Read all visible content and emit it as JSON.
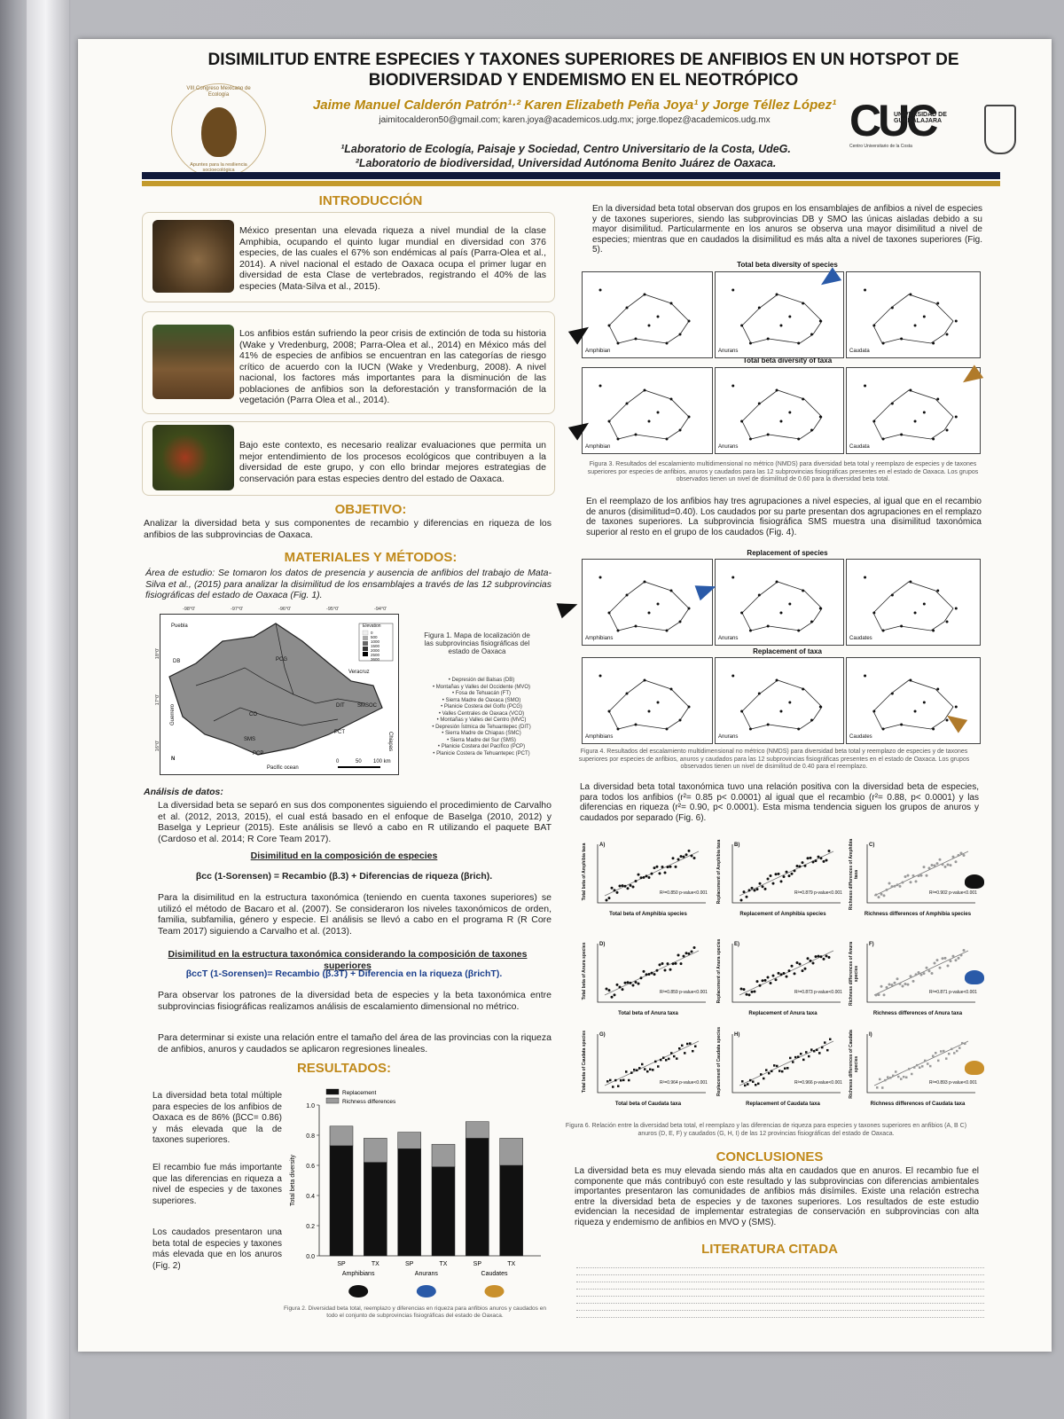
{
  "poster": {
    "title": "DISIMILITUD ENTRE ESPECIES Y TAXONES SUPERIORES DE ANFIBIOS EN UN HOTSPOT DE BIODIVERSIDAD Y ENDEMISMO EN EL NEOTRÓPICO",
    "authors": "Jaime Manuel Calderón Patrón¹·² Karen Elizabeth Peña Joya¹ y Jorge Téllez López¹",
    "emails": "jaimitocalderon50@gmail.com; karen.joya@academicos.udg.mx; jorge.tlopez@academicos.udg.mx",
    "affiliation1": "¹Laboratorio de Ecología, Paisaje y Sociedad, Centro Universitario de la Costa, UdeG.",
    "affiliation2": "²Laboratorio de biodiversidad, Universidad Autónoma Benito Juárez de Oaxaca.",
    "logo_left_text": "VIII Congreso Mexicano de Ecología · Apuntes para la resiliencia socioecológica",
    "logo_right_main": "CUC",
    "logo_right_name": "UNIVERSIDAD DE GUADALAJARA",
    "logo_right_sub": "Centro Universitario de la Costa",
    "accent_color": "#c0891a",
    "band_color": "#111a3a"
  },
  "intro": {
    "heading": "INTRODUCCIÓN",
    "p1": "México presentan una elevada riqueza a nivel mundial de la clase Amphibia, ocupando el quinto lugar mundial en diversidad con 376 especies, de las cuales el 67% son endémicas al país (Parra-Olea et al., 2014). A nivel nacional el estado de Oaxaca ocupa el primer lugar en diversidad de esta Clase de vertebrados, registrando el 40% de las especies (Mata-Silva et al., 2015).",
    "p2": "Los anfibios están sufriendo la peor crisis de extinción de toda su historia (Wake y Vredenburg, 2008; Parra-Olea et al., 2014) en México más del 41% de especies de anfibios se encuentran en las categorías de riesgo crítico de acuerdo con la IUCN (Wake y Vredenburg, 2008). A nivel nacional, los factores más importantes para la disminución de las poblaciones de anfibios son la deforestación y transformación de la vegetación (Parra Olea et al., 2014).",
    "p3": "Bajo este contexto, es necesario realizar evaluaciones que permita un mejor entendimiento de los procesos ecológicos que contribuyen a la diversidad de este grupo, y con ello brindar mejores estrategias de conservación para estas especies dentro del estado de Oaxaca."
  },
  "objetivo": {
    "heading": "OBJETIVO:",
    "text": "Analizar la diversidad beta y sus componentes de recambio y diferencias en riqueza de los anfibios de las subprovincias de Oaxaca."
  },
  "metodos": {
    "heading": "MATERIALES Y MÉTODOS:",
    "area": "Área de estudio: Se tomaron los datos de presencia y ausencia de anfibios del trabajo de Mata-Silva et al., (2015) para analizar la disimilitud de los ensamblajes a través de las 12 subprovincias fisiográficas del estado de Oaxaca (Fig. 1).",
    "fig1_caption": "Figura 1. Mapa de localización de las subprovincias fisiográficas del estado de Oaxaca",
    "fig1_list": [
      "Depresión del Balsas (DB)",
      "Montañas y Valles del Occidente (MVO)",
      "Fosa de Tehuacán (FT)",
      "Sierra Madre de Oaxaca (SMO)",
      "Planicie Costera del Golfo (PCG)",
      "Valles Centrales de Oaxaca (VCO)",
      "Montañas y Valles del Centro (MVC)",
      "Depresión Ístmica de Tehuantepec (DIT)",
      "Sierra Madre de Chiapas (SMC)",
      "Sierra Madre del Sur (SMS)",
      "Planicie Costera del Pacífico (PCP)",
      "Planicie Costera de Tehuantepec (PCT)"
    ],
    "map_labels": {
      "lon": [
        "-98°0'",
        "-97°0'",
        "-96°0'",
        "-95°0'",
        "-94°0'"
      ],
      "lat": [
        "18°0'",
        "17°0'",
        "16°0'"
      ],
      "puebla": "Puebla",
      "veracruz": "Veracruz",
      "guerrero": "Guerrero",
      "chiapas": "Chiapas",
      "ocean": "Pacific ocean",
      "elevation": "Elevation",
      "elev_values": [
        "0",
        "500",
        "1000",
        "1500",
        "2000",
        "2500",
        "3600"
      ],
      "scale": [
        "0",
        "50",
        "100 km"
      ],
      "north": "N",
      "regions": [
        "DB",
        "PCG",
        "DIT",
        "SMSOC",
        "PCT",
        "PCP",
        "SMS",
        "CO"
      ]
    },
    "analisis_heading": "Análisis de datos:",
    "analisis_1": "La diversidad beta se separó en sus dos componentes siguiendo el procedimiento de Carvalho et al. (2012, 2013, 2015), el cual está basado en el enfoque de Baselga (2010, 2012) y Baselga y Leprieur (2015). Este análisis se llevó a cabo en R utilizando el paquete BAT (Cardoso et al. 2014; R Core Team 2017).",
    "sub1": "Disimilitud en la composición de especies",
    "eq1": "βcc (1-Sorensen) = Recambio (β.3) + Diferencias de riqueza (βrich).",
    "analisis_2": "Para la disimilitud en la estructura taxonómica (teniendo en cuenta taxones superiores) se utilizó el método de Bacaro et al. (2007). Se consideraron los niveles taxonómicos de orden, familia, subfamilia, género y especie. El análisis se llevó a cabo en el programa R (R Core Team 2017) siguiendo a Carvalho et al. (2013).",
    "sub2": "Disimilitud en la estructura taxonómica considerando la composición de taxones superiores",
    "eq2": "βccT (1-Sorensen)= Recambio (β.3T) + Diferencia en la riqueza (βrichT).",
    "analisis_3": "Para observar los patrones de la diversidad beta de especies y la beta taxonómica entre subprovincias fisiográficas realizamos análisis de escalamiento dimensional no métrico.",
    "analisis_4": "Para determinar si existe una relación entre el tamaño del área de las provincias con la riqueza de anfibios, anuros y caudados se aplicaron regresiones lineales."
  },
  "resultados": {
    "heading": "RESULTADOS:",
    "b1": "La diversidad beta total múltiple para especies de los anfibios de Oaxaca es de 86% (βCC= 0.86) y más elevada que la de taxones superiores.",
    "b2": "El recambio fue más importante que las diferencias en riqueza a nivel de especies y de taxones superiores.",
    "b3": "Los caudados presentaron una beta total de especies y taxones más elevada que en los anuros (Fig. 2)",
    "fig2_caption": "Figura 2. Diversidad beta total, reemplazo y diferencias en riqueza para anfibios anuros y caudados en todo el conjunto de subprovincias fisiográficas del estado de Oaxaca."
  },
  "right": {
    "p1": "En la diversidad beta total observan dos grupos en los ensamblajes de anfibios a nivel de especies y de taxones superiores, siendo las subprovincias DB y SMO las únicas aisladas debido a su mayor disimilitud. Particularmente en los anuros se observa una mayor disimilitud a nivel de especies; mientras que en caudados la disimilitud es más alta a nivel de taxones superiores (Fig. 5).",
    "fig3_title_a": "Total beta diversity of species",
    "fig3_title_b": "Total beta diversity of taxa",
    "fig3_caption": "Figura 3. Resultados del escalamiento multidimensional no métrico (NMDS) para diversidad beta total y reemplazo de especies y de taxones superiores por especies de anfibios, anuros y caudados para las 12 subprovincias fisiográficas presentes en el estado de Oaxaca. Los grupos observados tienen un nivel de disimilitud de 0.60 para la diversidad beta total.",
    "p2": "En el reemplazo de los anfibios hay tres agrupaciones a nivel especies, al igual que en el recambio de anuros (disimilitud=0.40). Los caudados por su parte presentan dos agrupaciones en el remplazo de taxones superiores. La subprovincia fisiográfica SMS muestra una disimilitud taxonómica superior al resto en el grupo de los caudados (Fig. 4).",
    "fig4_title_a": "Replacement of species",
    "fig4_title_b": "Replacement of taxa",
    "fig4_caption": "Figura 4. Resultados del escalamiento multidimensional no métrico (NMDS) para diversidad beta total y reemplazo de especies y de taxones superiores por especies de anfibios, anuros y caudados para las 12 subprovincias fisiográficas presentes en el estado de Oaxaca. Los grupos observados tienen un nivel de disimilitud de 0.40 para el reemplazo.",
    "group_labels": [
      "Amphibians",
      "Anurans",
      "Caudates"
    ],
    "group_labels_b": [
      "Amphibian",
      "Anurans",
      "Caudata"
    ],
    "p3": "La diversidad beta total taxonómica tuvo una relación positiva con la diversidad beta de especies, para todos los anfibios (r²= 0.85 p< 0.0001) al igual que el recambio (r²= 0.88, p< 0.0001) y las diferencias en riqueza (r²= 0.90, p< 0.0001). Esta misma tendencia siguen los grupos de anuros y caudados por separado (Fig. 6).",
    "fig6_caption": "Figura 6. Relación entre la diversidad beta total, el reemplazo y las diferencias de riqueza para especies y taxones superiores en anfibios (A, B C) anuros (D, E, F) y caudados (G, H, I) de las 12 provincias fisiográficas del estado de Oaxaca.",
    "conclusiones_heading": "CONCLUSIONES",
    "conclusiones": "La diversidad beta es muy elevada siendo más alta en caudados que en anuros. El recambio fue el componente que más contribuyó con este resultado y las subprovincias con diferencias ambientales importantes presentaron las comunidades de anfibios más disímiles. Existe una relación estrecha entre la diversidad beta de especies y de taxones superiores. Los resultados de este estudio evidencian la necesidad de implementar estrategias de conservación en subprovincias con alta riqueza y endemismo de anfibios en MVO y (SMS).",
    "literatura_heading": "LITERATURA CITADA"
  },
  "fig6": {
    "panels": [
      {
        "id": "A)",
        "xlabel": "Total beta of Amphibia species",
        "ylabel": "Total beta of Amphibia taxa",
        "stat": "R²=0.850 p-value<0.001"
      },
      {
        "id": "B)",
        "xlabel": "Replacement of Amphibia species",
        "ylabel": "Replacement of Amphibia taxa",
        "stat": "R²=0.879 p-value<0.001"
      },
      {
        "id": "C)",
        "xlabel": "Richness differences of Amphibia species",
        "ylabel": "Richness differences of Amphibia taxa",
        "stat": "R²=0.902 p-value<0.001"
      },
      {
        "id": "D)",
        "xlabel": "Total beta of Anura taxa",
        "ylabel": "Total beta of Anura species",
        "stat": "R²=0.859 p-value<0.001"
      },
      {
        "id": "E)",
        "xlabel": "Replacement of Anura taxa",
        "ylabel": "Replacement of Anura species",
        "stat": "R²=0.873 p-value<0.001"
      },
      {
        "id": "F)",
        "xlabel": "Richness differences of Anura taxa",
        "ylabel": "Richness differences of Anura species",
        "stat": "R²=0.871 p-value<0.001"
      },
      {
        "id": "G)",
        "xlabel": "Total beta of Caudata taxa",
        "ylabel": "Total beta of Caudata species",
        "stat": "R²=0.964 p-value<0.001"
      },
      {
        "id": "H)",
        "xlabel": "Replacement of Caudata taxa",
        "ylabel": "Replacement of Caudata species",
        "stat": "R²=0.966 p-value<0.001"
      },
      {
        "id": "I)",
        "xlabel": "Richness differences of Caudata taxa",
        "ylabel": "Richness differences of Caudata species",
        "stat": "R²=0.893 p-value<0.001"
      }
    ]
  },
  "chart_data": {
    "type": "bar",
    "stacked": true,
    "categories": [
      "SP",
      "TX",
      "SP",
      "TX",
      "SP",
      "TX"
    ],
    "groups": [
      "Amphibians",
      "Anurans",
      "Caudates"
    ],
    "ylabel": "Total beta diversity",
    "ylim": [
      0,
      1.0
    ],
    "yticks": [
      "0.0",
      "0.2",
      "0.4",
      "0.6",
      "0.8",
      "1.0"
    ],
    "series": [
      {
        "name": "Replacement",
        "color": "#111111",
        "values": [
          0.73,
          0.62,
          0.71,
          0.59,
          0.78,
          0.6
        ]
      },
      {
        "name": "Richness differences",
        "color": "#9a9a9a",
        "values": [
          0.13,
          0.16,
          0.11,
          0.15,
          0.11,
          0.18
        ]
      }
    ],
    "legend": "top-left"
  }
}
